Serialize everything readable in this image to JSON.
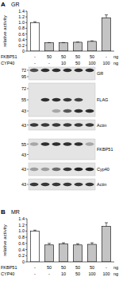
{
  "chart_data": [
    {
      "type": "bar",
      "title": "GR",
      "annotations": [
        "A"
      ],
      "ylabel": "relative activity",
      "categories": [
        null,
        null,
        null,
        null,
        null,
        null
      ],
      "values": [
        1.0,
        0.29,
        0.29,
        0.31,
        0.34,
        1.17
      ],
      "errors": [
        0.03,
        0.01,
        0.01,
        0.01,
        0.02,
        0.1
      ],
      "colors": [
        "#ffffff",
        "#c4c4c4",
        "#c4c4c4",
        "#c4c4c4",
        "#c4c4c4",
        "#c4c4c4"
      ],
      "ylim": [
        0,
        1.4
      ],
      "yticks": [
        0,
        0.2,
        0.4,
        0.6,
        0.8,
        {
          "value": 1,
          "label": "1.0"
        },
        1.2,
        1.4
      ],
      "conditions": [
        {
          "label": "FKBP51",
          "values": [
            "-",
            "50",
            "50",
            "50",
            "50",
            "-"
          ],
          "unit": "ng"
        },
        {
          "label": "CYP40",
          "values": [
            "-",
            "-",
            "10",
            "50",
            "100",
            "100"
          ],
          "unit": "ng"
        }
      ]
    },
    {
      "type": "bar",
      "title": "MR",
      "annotations": [
        "B"
      ],
      "ylabel": "relative activity",
      "categories": [
        null,
        null,
        null,
        null,
        null,
        null
      ],
      "values": [
        1.0,
        0.55,
        0.58,
        0.55,
        0.57,
        1.15
      ],
      "errors": [
        0.03,
        0.05,
        0.04,
        0.04,
        0.05,
        0.12
      ],
      "colors": [
        "#ffffff",
        "#c4c4c4",
        "#c4c4c4",
        "#c4c4c4",
        "#c4c4c4",
        "#c4c4c4"
      ],
      "ylim": [
        0,
        1.4
      ],
      "yticks": [
        0,
        0.2,
        0.4,
        0.6,
        0.8,
        {
          "value": 1,
          "label": "1.0"
        },
        1.2,
        1.4
      ],
      "conditions": [
        {
          "label": "FKBP51",
          "values": [
            "-",
            "50",
            "50",
            "50",
            "50",
            "-"
          ],
          "unit": "ng"
        },
        {
          "label": "CYP40",
          "values": [
            "-",
            "-",
            "10",
            "50",
            "100",
            "100"
          ],
          "unit": "ng"
        }
      ]
    }
  ],
  "blots": [
    {
      "label": "GR",
      "markers": [
        72,
        95
      ],
      "bands": [
        {
          "at": 72,
          "intensity": [
            0.75,
            0.9,
            0.9,
            0.9,
            0.9,
            0.9
          ]
        }
      ]
    },
    {
      "label": "FLAG",
      "markers": [
        72,
        55,
        43
      ],
      "bands": [
        {
          "at": 55,
          "intensity": [
            0,
            0.9,
            0.9,
            0.85,
            0.8,
            0
          ]
        },
        {
          "at": 43,
          "intensity": [
            0,
            0,
            0.3,
            0.7,
            0.9,
            0.9
          ]
        }
      ]
    },
    {
      "label": "Actin",
      "markers": [
        43
      ],
      "bands": [
        {
          "at": 43,
          "intensity": [
            0.85,
            0.85,
            0.85,
            0.85,
            0.85,
            0.85
          ]
        }
      ]
    },
    {
      "label": "FKBP51",
      "markers": [
        55,
        43
      ],
      "bands": [
        {
          "at": 55,
          "intensity": [
            0.3,
            0.9,
            0.9,
            0.9,
            0.9,
            0.3
          ]
        }
      ]
    },
    {
      "label": "Cyp40",
      "markers": [
        43
      ],
      "bands": [
        {
          "at": 43,
          "intensity": [
            0.35,
            0.35,
            0.6,
            0.85,
            0.95,
            0.95
          ]
        }
      ]
    },
    {
      "label": "Actin",
      "markers": [
        43
      ],
      "bands": [
        {
          "at": 43,
          "intensity": [
            0.85,
            0.85,
            0.85,
            0.85,
            0.85,
            0.85
          ]
        }
      ]
    }
  ]
}
